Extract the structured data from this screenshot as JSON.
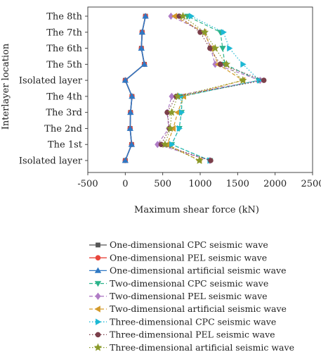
{
  "chart_data": {
    "type": "line",
    "xlabel": "Maximum shear force (kN)",
    "ylabel": "Interlayer location",
    "xlim": [
      -500,
      2500
    ],
    "xticks": [
      -500,
      0,
      500,
      1000,
      1500,
      2000,
      2500
    ],
    "categories": [
      "Isolated layer",
      "The 1st",
      "The 2nd",
      "The 3rd",
      "The 4th",
      "Isolated layer",
      "The 5th",
      "The 6th",
      "The 7th",
      "The 8th"
    ],
    "legend_position": "bottom",
    "series": [
      {
        "name": "One-dimensional CPC seismic wave",
        "color": "#555555",
        "dash": "solid",
        "marker": "square",
        "values": [
          0,
          85,
          65,
          70,
          90,
          0,
          255,
          215,
          225,
          270
        ]
      },
      {
        "name": "One-dimensional PEL seismic wave",
        "color": "#e8463c",
        "dash": "solid",
        "marker": "circle",
        "values": [
          0,
          85,
          65,
          70,
          90,
          0,
          255,
          215,
          225,
          270
        ]
      },
      {
        "name": "One-dimensional artificial seismic wave",
        "color": "#2f78c4",
        "dash": "solid",
        "marker": "triangle-up",
        "values": [
          0,
          85,
          65,
          70,
          90,
          0,
          255,
          215,
          225,
          270
        ]
      },
      {
        "name": "Two-dimensional CPC seismic wave",
        "color": "#2bb38a",
        "dash": "dashed",
        "marker": "triangle-down",
        "values": [
          1130,
          620,
          720,
          750,
          760,
          1780,
          1330,
          1300,
          1270,
          830
        ]
      },
      {
        "name": "Two-dimensional PEL seismic wave",
        "color": "#b07cc6",
        "dash": "dashed",
        "marker": "diamond",
        "values": [
          1130,
          430,
          580,
          560,
          620,
          1800,
          1200,
          1140,
          1060,
          610
        ]
      },
      {
        "name": "Two-dimensional artificial seismic wave",
        "color": "#d39a2a",
        "dash": "dashed",
        "marker": "triangle-left",
        "values": [
          990,
          560,
          640,
          700,
          780,
          1570,
          1240,
          1150,
          1050,
          660
        ]
      },
      {
        "name": "Three-dimensional CPC seismic wave",
        "color": "#1db8d4",
        "dash": "dotted",
        "marker": "triangle-right",
        "values": [
          1130,
          620,
          720,
          750,
          740,
          1790,
          1570,
          1390,
          1310,
          880
        ]
      },
      {
        "name": "Three-dimensional PEL seismic wave",
        "color": "#7b3f4a",
        "dash": "dotted",
        "marker": "circle",
        "values": [
          1140,
          480,
          590,
          560,
          680,
          1850,
          1270,
          1130,
          1000,
          720
        ]
      },
      {
        "name": "Three-dimensional artificial seismic wave",
        "color": "#8a9a2a",
        "dash": "dotted",
        "marker": "star",
        "values": [
          990,
          530,
          600,
          620,
          700,
          1570,
          1350,
          1200,
          1060,
          770
        ]
      }
    ]
  }
}
